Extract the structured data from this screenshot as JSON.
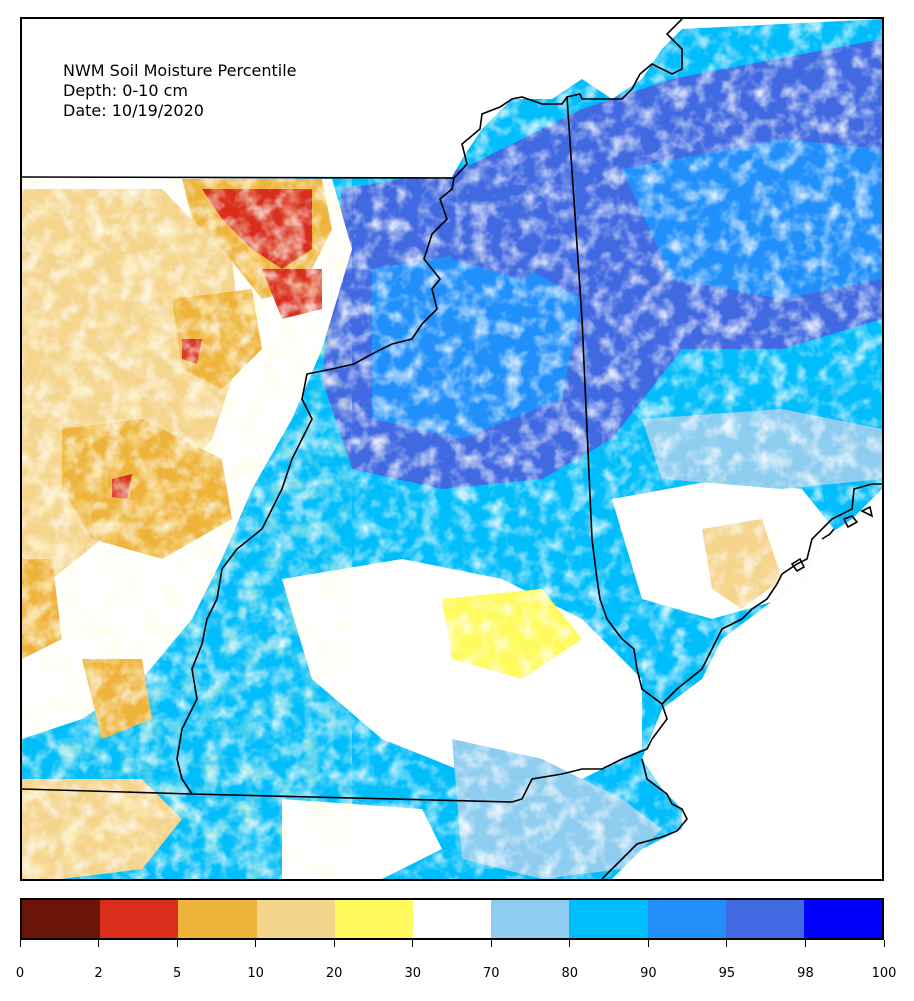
{
  "map": {
    "title_line1": "NWM Soil Moisture Percentile",
    "title_line2": "Depth: 0-10 cm",
    "title_line3": "Date: 10/19/2020"
  },
  "colorbar": {
    "bins": [
      {
        "low": "0",
        "color": "#6b1408"
      },
      {
        "low": "2",
        "color": "#d92e1c"
      },
      {
        "low": "5",
        "color": "#eeb33a"
      },
      {
        "low": "10",
        "color": "#f5d48c"
      },
      {
        "low": "20",
        "color": "#fffb5e"
      },
      {
        "low": "30",
        "color": "#ffffff"
      },
      {
        "low": "70",
        "color": "#8ecdf0"
      },
      {
        "low": "80",
        "color": "#00bdfb"
      },
      {
        "low": "90",
        "color": "#2190fb"
      },
      {
        "low": "95",
        "color": "#4169e1"
      },
      {
        "low": "98",
        "color": "#0000ff"
      }
    ],
    "labels": [
      "0",
      "2",
      "5",
      "10",
      "20",
      "30",
      "70",
      "80",
      "90",
      "95",
      "98",
      "100"
    ]
  }
}
